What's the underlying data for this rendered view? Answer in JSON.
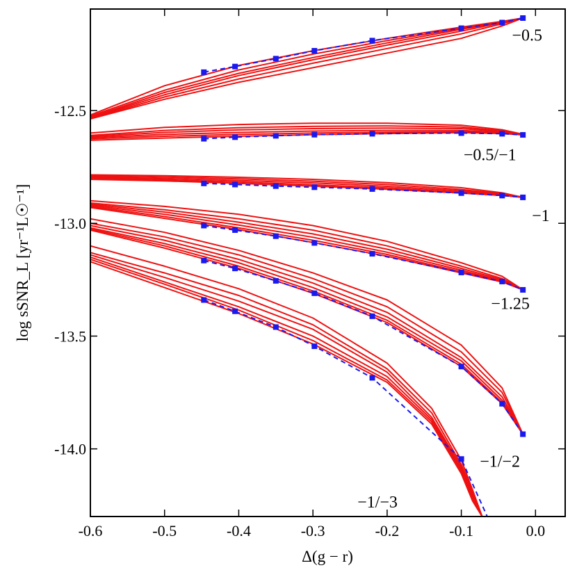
{
  "chart_data": {
    "type": "line",
    "xlabel": "Δ(g − r)",
    "ylabel": "log sSNR_L [yr⁻¹L☉⁻¹]",
    "xlim": [
      -0.6,
      0.04
    ],
    "ylim": [
      -14.3,
      -12.05
    ],
    "xticks": [
      -0.6,
      -0.5,
      -0.4,
      -0.3,
      -0.2,
      -0.1,
      0.0
    ],
    "xtick_labels": [
      "-0.6",
      "-0.5",
      "-0.4",
      "-0.3",
      "-0.2",
      "-0.1",
      "0.0"
    ],
    "yticks": [
      -12.5,
      -13.0,
      -13.5,
      -14.0
    ],
    "ytick_labels": [
      "-12.5",
      "-13.0",
      "-13.5",
      "-14.0"
    ],
    "colors": {
      "model": "#ee1111",
      "fit": "#1a1aee",
      "axis": "#000000"
    },
    "groups": [
      {
        "name": "−0.5",
        "label_pos": [
          -0.005,
          -12.19
        ],
        "fit": {
          "x": [
            -0.447,
            -0.405,
            -0.35,
            -0.298,
            -0.22,
            -0.1,
            -0.045,
            -0.017
          ],
          "y": [
            -12.33,
            -12.305,
            -12.27,
            -12.235,
            -12.19,
            -12.135,
            -12.11,
            -12.09
          ]
        },
        "models": [
          {
            "x": [
              -0.6,
              -0.5,
              -0.4,
              -0.3,
              -0.2,
              -0.1,
              -0.045,
              -0.017
            ],
            "y": [
              -12.52,
              -12.39,
              -12.3,
              -12.235,
              -12.18,
              -12.13,
              -12.105,
              -12.09
            ]
          },
          {
            "x": [
              -0.6,
              -0.5,
              -0.4,
              -0.3,
              -0.2,
              -0.1,
              -0.045,
              -0.017
            ],
            "y": [
              -12.525,
              -12.41,
              -12.32,
              -12.25,
              -12.19,
              -12.135,
              -12.105,
              -12.09
            ]
          },
          {
            "x": [
              -0.6,
              -0.5,
              -0.4,
              -0.3,
              -0.2,
              -0.1,
              -0.045,
              -0.017
            ],
            "y": [
              -12.53,
              -12.42,
              -12.335,
              -12.265,
              -12.2,
              -12.14,
              -12.108,
              -12.09
            ]
          },
          {
            "x": [
              -0.6,
              -0.5,
              -0.4,
              -0.3,
              -0.2,
              -0.1,
              -0.045,
              -0.017
            ],
            "y": [
              -12.532,
              -12.43,
              -12.345,
              -12.275,
              -12.21,
              -12.148,
              -12.11,
              -12.09
            ]
          },
          {
            "x": [
              -0.6,
              -0.5,
              -0.4,
              -0.3,
              -0.2,
              -0.1,
              -0.045,
              -0.017
            ],
            "y": [
              -12.535,
              -12.44,
              -12.36,
              -12.29,
              -12.225,
              -12.16,
              -12.115,
              -12.09
            ]
          },
          {
            "x": [
              -0.6,
              -0.5,
              -0.4,
              -0.3,
              -0.2,
              -0.1,
              -0.045,
              -0.017
            ],
            "y": [
              -12.537,
              -12.45,
              -12.375,
              -12.31,
              -12.245,
              -12.18,
              -12.125,
              -12.09
            ]
          }
        ]
      },
      {
        "name": "−0.5/−1",
        "label_pos": [
          -0.04,
          -12.72
        ],
        "fit": {
          "x": [
            -0.447,
            -0.405,
            -0.35,
            -0.298,
            -0.22,
            -0.1,
            -0.045,
            -0.017
          ],
          "y": [
            -12.625,
            -12.618,
            -12.612,
            -12.607,
            -12.603,
            -12.6,
            -12.603,
            -12.608
          ]
        },
        "models": [
          {
            "x": [
              -0.6,
              -0.5,
              -0.4,
              -0.3,
              -0.2,
              -0.1,
              -0.045,
              -0.017
            ],
            "y": [
              -12.6,
              -12.575,
              -12.562,
              -12.556,
              -12.556,
              -12.565,
              -12.585,
              -12.605
            ]
          },
          {
            "x": [
              -0.6,
              -0.5,
              -0.4,
              -0.3,
              -0.2,
              -0.1,
              -0.045,
              -0.017
            ],
            "y": [
              -12.61,
              -12.588,
              -12.576,
              -12.57,
              -12.568,
              -12.573,
              -12.59,
              -12.606
            ]
          },
          {
            "x": [
              -0.6,
              -0.5,
              -0.4,
              -0.3,
              -0.2,
              -0.1,
              -0.045,
              -0.017
            ],
            "y": [
              -12.615,
              -12.597,
              -12.586,
              -12.58,
              -12.578,
              -12.58,
              -12.593,
              -12.607
            ]
          },
          {
            "x": [
              -0.6,
              -0.5,
              -0.4,
              -0.3,
              -0.2,
              -0.1,
              -0.045,
              -0.017
            ],
            "y": [
              -12.62,
              -12.606,
              -12.597,
              -12.591,
              -12.588,
              -12.588,
              -12.597,
              -12.608
            ]
          },
          {
            "x": [
              -0.6,
              -0.5,
              -0.4,
              -0.3,
              -0.2,
              -0.1,
              -0.045,
              -0.017
            ],
            "y": [
              -12.625,
              -12.614,
              -12.606,
              -12.6,
              -12.596,
              -12.594,
              -12.6,
              -12.608
            ]
          },
          {
            "x": [
              -0.6,
              -0.5,
              -0.4,
              -0.3,
              -0.2,
              -0.1,
              -0.045,
              -0.017
            ],
            "y": [
              -12.632,
              -12.622,
              -12.614,
              -12.607,
              -12.602,
              -12.598,
              -12.602,
              -12.608
            ]
          }
        ]
      },
      {
        "name": "−1",
        "label_pos": [
          0.005,
          -12.99
        ],
        "fit": {
          "x": [
            -0.447,
            -0.405,
            -0.35,
            -0.298,
            -0.22,
            -0.1,
            -0.045,
            -0.017
          ],
          "y": [
            -12.823,
            -12.828,
            -12.835,
            -12.84,
            -12.848,
            -12.866,
            -12.877,
            -12.885
          ]
        },
        "models": [
          {
            "x": [
              -0.6,
              -0.5,
              -0.4,
              -0.3,
              -0.2,
              -0.1,
              -0.045,
              -0.017
            ],
            "y": [
              -12.785,
              -12.789,
              -12.796,
              -12.805,
              -12.82,
              -12.842,
              -12.865,
              -12.885
            ]
          },
          {
            "x": [
              -0.6,
              -0.5,
              -0.4,
              -0.3,
              -0.2,
              -0.1,
              -0.045,
              -0.017
            ],
            "y": [
              -12.79,
              -12.795,
              -12.803,
              -12.813,
              -12.828,
              -12.85,
              -12.869,
              -12.885
            ]
          },
          {
            "x": [
              -0.6,
              -0.5,
              -0.4,
              -0.3,
              -0.2,
              -0.1,
              -0.045,
              -0.017
            ],
            "y": [
              -12.795,
              -12.801,
              -12.81,
              -12.821,
              -12.836,
              -12.856,
              -12.872,
              -12.885
            ]
          },
          {
            "x": [
              -0.6,
              -0.5,
              -0.4,
              -0.3,
              -0.2,
              -0.1,
              -0.045,
              -0.017
            ],
            "y": [
              -12.8,
              -12.807,
              -12.817,
              -12.829,
              -12.843,
              -12.862,
              -12.875,
              -12.885
            ]
          },
          {
            "x": [
              -0.6,
              -0.5,
              -0.4,
              -0.3,
              -0.2,
              -0.1,
              -0.045,
              -0.017
            ],
            "y": [
              -12.805,
              -12.812,
              -12.823,
              -12.835,
              -12.849,
              -12.866,
              -12.877,
              -12.885
            ]
          }
        ]
      },
      {
        "name": "−1.25",
        "label_pos": [
          -0.022,
          -13.38
        ],
        "fit": {
          "x": [
            -0.447,
            -0.405,
            -0.35,
            -0.298,
            -0.22,
            -0.1,
            -0.045,
            -0.017
          ],
          "y": [
            -13.01,
            -13.03,
            -13.057,
            -13.087,
            -13.135,
            -13.218,
            -13.258,
            -13.295
          ]
        },
        "models": [
          {
            "x": [
              -0.6,
              -0.5,
              -0.4,
              -0.3,
              -0.2,
              -0.1,
              -0.045,
              -0.017
            ],
            "y": [
              -12.9,
              -12.925,
              -12.96,
              -13.01,
              -13.08,
              -13.175,
              -13.235,
              -13.295
            ]
          },
          {
            "x": [
              -0.6,
              -0.5,
              -0.4,
              -0.3,
              -0.2,
              -0.1,
              -0.045,
              -0.017
            ],
            "y": [
              -12.91,
              -12.94,
              -12.98,
              -13.03,
              -13.1,
              -13.19,
              -13.245,
              -13.295
            ]
          },
          {
            "x": [
              -0.6,
              -0.5,
              -0.4,
              -0.3,
              -0.2,
              -0.1,
              -0.045,
              -0.017
            ],
            "y": [
              -12.915,
              -12.95,
              -12.995,
              -13.047,
              -13.115,
              -13.2,
              -13.25,
              -13.295
            ]
          },
          {
            "x": [
              -0.6,
              -0.5,
              -0.4,
              -0.3,
              -0.2,
              -0.1,
              -0.045,
              -0.017
            ],
            "y": [
              -12.92,
              -12.96,
              -13.008,
              -13.062,
              -13.128,
              -13.208,
              -13.255,
              -13.295
            ]
          },
          {
            "x": [
              -0.6,
              -0.5,
              -0.4,
              -0.3,
              -0.2,
              -0.1,
              -0.045,
              -0.017
            ],
            "y": [
              -12.925,
              -12.97,
              -13.02,
              -13.075,
              -13.138,
              -13.215,
              -13.258,
              -13.295
            ]
          },
          {
            "x": [
              -0.6,
              -0.5,
              -0.4,
              -0.3,
              -0.2,
              -0.1,
              -0.045,
              -0.017
            ],
            "y": [
              -12.93,
              -12.978,
              -13.028,
              -13.085,
              -13.146,
              -13.22,
              -13.26,
              -13.295
            ]
          }
        ]
      },
      {
        "name": "−1/−2",
        "label_pos": [
          -0.035,
          -14.08
        ],
        "fit": {
          "x": [
            -0.447,
            -0.405,
            -0.35,
            -0.298,
            -0.22,
            -0.1,
            -0.045,
            -0.017
          ],
          "y": [
            -13.165,
            -13.2,
            -13.255,
            -13.31,
            -13.412,
            -13.635,
            -13.8,
            -13.935
          ]
        },
        "models": [
          {
            "x": [
              -0.6,
              -0.5,
              -0.4,
              -0.3,
              -0.2,
              -0.1,
              -0.045,
              -0.017
            ],
            "y": [
              -12.98,
              -13.04,
              -13.12,
              -13.22,
              -13.34,
              -13.54,
              -13.73,
              -13.935
            ]
          },
          {
            "x": [
              -0.6,
              -0.5,
              -0.4,
              -0.3,
              -0.2,
              -0.1,
              -0.045,
              -0.017
            ],
            "y": [
              -13.0,
              -13.06,
              -13.14,
              -13.245,
              -13.37,
              -13.57,
              -13.75,
              -13.935
            ]
          },
          {
            "x": [
              -0.6,
              -0.5,
              -0.4,
              -0.3,
              -0.2,
              -0.1,
              -0.045,
              -0.017
            ],
            "y": [
              -13.01,
              -13.075,
              -13.16,
              -13.265,
              -13.395,
              -13.595,
              -13.77,
              -13.935
            ]
          },
          {
            "x": [
              -0.6,
              -0.5,
              -0.4,
              -0.3,
              -0.2,
              -0.1,
              -0.045,
              -0.017
            ],
            "y": [
              -13.02,
              -13.09,
              -13.175,
              -13.285,
              -13.415,
              -13.61,
              -13.785,
              -13.935
            ]
          },
          {
            "x": [
              -0.6,
              -0.5,
              -0.4,
              -0.3,
              -0.2,
              -0.1,
              -0.045,
              -0.017
            ],
            "y": [
              -13.025,
              -13.1,
              -13.19,
              -13.3,
              -13.43,
              -13.625,
              -13.795,
              -13.935
            ]
          },
          {
            "x": [
              -0.6,
              -0.5,
              -0.4,
              -0.3,
              -0.2,
              -0.1,
              -0.045,
              -0.017
            ],
            "y": [
              -13.03,
              -13.11,
              -13.2,
              -13.31,
              -13.44,
              -13.635,
              -13.8,
              -13.935
            ]
          }
        ]
      },
      {
        "name": "−1/−3",
        "label_pos": [
          -0.2,
          -14.26
        ],
        "fit": {
          "x": [
            -0.447,
            -0.405,
            -0.35,
            -0.298,
            -0.22,
            -0.1,
            -0.065
          ],
          "y": [
            -13.34,
            -13.39,
            -13.46,
            -13.545,
            -13.685,
            -14.045,
            -14.3
          ]
        },
        "models": [
          {
            "x": [
              -0.6,
              -0.5,
              -0.4,
              -0.3,
              -0.2,
              -0.14,
              -0.1,
              -0.085,
              -0.072
            ],
            "y": [
              -13.1,
              -13.19,
              -13.29,
              -13.42,
              -13.62,
              -13.82,
              -14.05,
              -14.18,
              -14.3
            ]
          },
          {
            "x": [
              -0.6,
              -0.5,
              -0.4,
              -0.3,
              -0.2,
              -0.14,
              -0.1,
              -0.085,
              -0.072
            ],
            "y": [
              -13.13,
              -13.22,
              -13.32,
              -13.45,
              -13.645,
              -13.84,
              -14.07,
              -14.19,
              -14.3
            ]
          },
          {
            "x": [
              -0.6,
              -0.5,
              -0.4,
              -0.3,
              -0.2,
              -0.14,
              -0.1,
              -0.085,
              -0.072
            ],
            "y": [
              -13.14,
              -13.24,
              -13.345,
              -13.47,
              -13.66,
              -13.86,
              -14.08,
              -14.2,
              -14.3
            ]
          },
          {
            "x": [
              -0.6,
              -0.5,
              -0.4,
              -0.3,
              -0.2,
              -0.14,
              -0.1,
              -0.085,
              -0.072
            ],
            "y": [
              -13.15,
              -13.26,
              -13.37,
              -13.5,
              -13.68,
              -13.87,
              -14.09,
              -14.21,
              -14.3
            ]
          },
          {
            "x": [
              -0.6,
              -0.5,
              -0.4,
              -0.3,
              -0.2,
              -0.14,
              -0.1,
              -0.085,
              -0.072
            ],
            "y": [
              -13.16,
              -13.27,
              -13.385,
              -13.52,
              -13.695,
              -13.88,
              -14.1,
              -14.22,
              -14.3
            ]
          },
          {
            "x": [
              -0.6,
              -0.5,
              -0.4,
              -0.3,
              -0.2,
              -0.14,
              -0.1,
              -0.085,
              -0.072
            ],
            "y": [
              -13.17,
              -13.285,
              -13.4,
              -13.535,
              -13.705,
              -13.89,
              -14.11,
              -14.23,
              -14.3
            ]
          }
        ]
      }
    ]
  }
}
